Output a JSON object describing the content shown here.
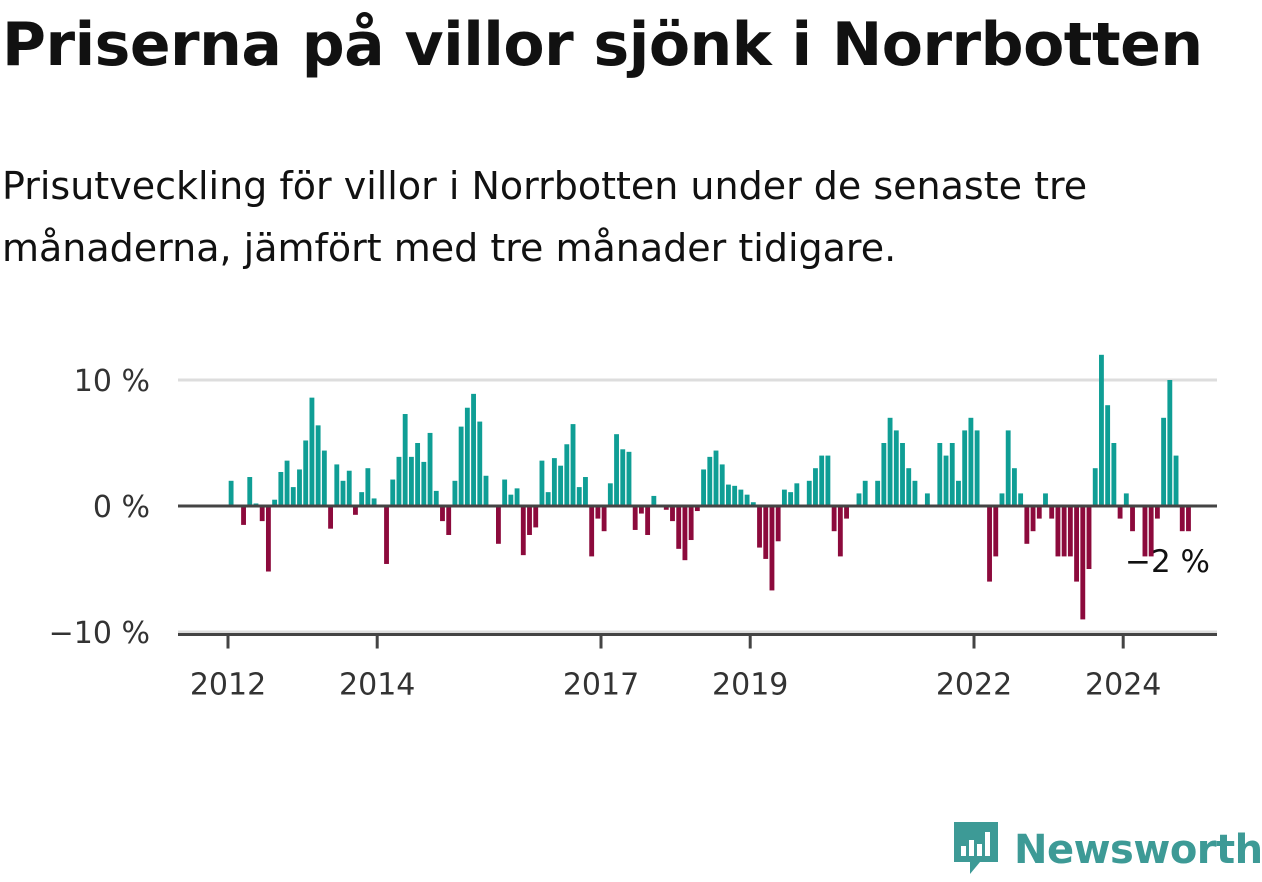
{
  "title": "Priserna på villor sjönk i Norrbotten",
  "subtitle": "Prisutveckling för villor i Norrbotten under de senaste tre månaderna, jämfört med tre månader tidigare.",
  "brand": "Newsworthy",
  "colors": {
    "positive": "#0f9e95",
    "negative": "#8c0a3c",
    "brand": "#3d9a96"
  },
  "chart_data": {
    "type": "bar",
    "title": "Priserna på villor sjönk i Norrbotten",
    "xlabel": "",
    "ylabel": "",
    "ylim": [
      -10.5,
      12
    ],
    "y_ticks": [
      {
        "value": 10,
        "label": "10 %"
      },
      {
        "value": 0,
        "label": "0 %"
      },
      {
        "value": -10,
        "label": "−10 %"
      }
    ],
    "x_ticks": [
      {
        "year": 2012,
        "label": "2012"
      },
      {
        "year": 2014,
        "label": "2014"
      },
      {
        "year": 2017,
        "label": "2017"
      },
      {
        "year": 2019,
        "label": "2019"
      },
      {
        "year": 2022,
        "label": "2022"
      },
      {
        "year": 2024,
        "label": "2024"
      }
    ],
    "start": "2012-01",
    "frequency": "monthly",
    "values": [
      2.0,
      0,
      -1.5,
      2.3,
      0.2,
      -1.2,
      -5.2,
      0.5,
      2.7,
      3.6,
      1.5,
      2.9,
      5.2,
      8.6,
      6.4,
      4.4,
      -1.8,
      3.3,
      2.0,
      2.8,
      -0.7,
      1.1,
      3.0,
      0.6,
      0,
      -4.6,
      2.1,
      3.9,
      7.3,
      3.9,
      5.0,
      3.5,
      5.8,
      1.2,
      -1.2,
      -2.3,
      2.0,
      6.3,
      7.8,
      8.9,
      6.7,
      2.4,
      0,
      -3.0,
      2.1,
      0.9,
      1.4,
      -3.9,
      -2.3,
      -1.7,
      3.6,
      1.1,
      3.8,
      3.2,
      4.9,
      6.5,
      1.5,
      2.3,
      -4.0,
      -1.0,
      -2.0,
      1.8,
      5.7,
      4.5,
      4.3,
      -1.9,
      -0.6,
      -2.3,
      0.8,
      0,
      -0.3,
      -1.2,
      -3.4,
      -4.3,
      -2.7,
      -0.4,
      2.9,
      3.9,
      4.4,
      3.3,
      1.7,
      1.6,
      1.3,
      0.9,
      0.3,
      -3.3,
      -4.2,
      -6.7,
      -2.8,
      1.3,
      1.1,
      1.8,
      0,
      2.0,
      3.0,
      4.0,
      4.0,
      -2.0,
      -4.0,
      -1.0,
      0,
      1.0,
      2.0,
      0,
      2.0,
      5.0,
      7.0,
      6.0,
      5.0,
      3.0,
      2.0,
      0,
      1.0,
      0,
      5.0,
      4.0,
      5.0,
      2.0,
      6.0,
      7.0,
      6.0,
      0,
      -6.0,
      -4.0,
      1.0,
      6.0,
      3.0,
      1.0,
      -3.0,
      -2.0,
      -1.0,
      1.0,
      -1.0,
      -4.0,
      -4.0,
      -4.0,
      -6.0,
      -9.0,
      -5.0,
      3.0,
      12.0,
      8.0,
      5.0,
      -1.0,
      1.0,
      -2.0,
      0,
      -4.0,
      -4.0,
      -1.0,
      7.0,
      10.0,
      4.0,
      -2.0,
      -2.0
    ],
    "last_value_label": "−2 %"
  }
}
